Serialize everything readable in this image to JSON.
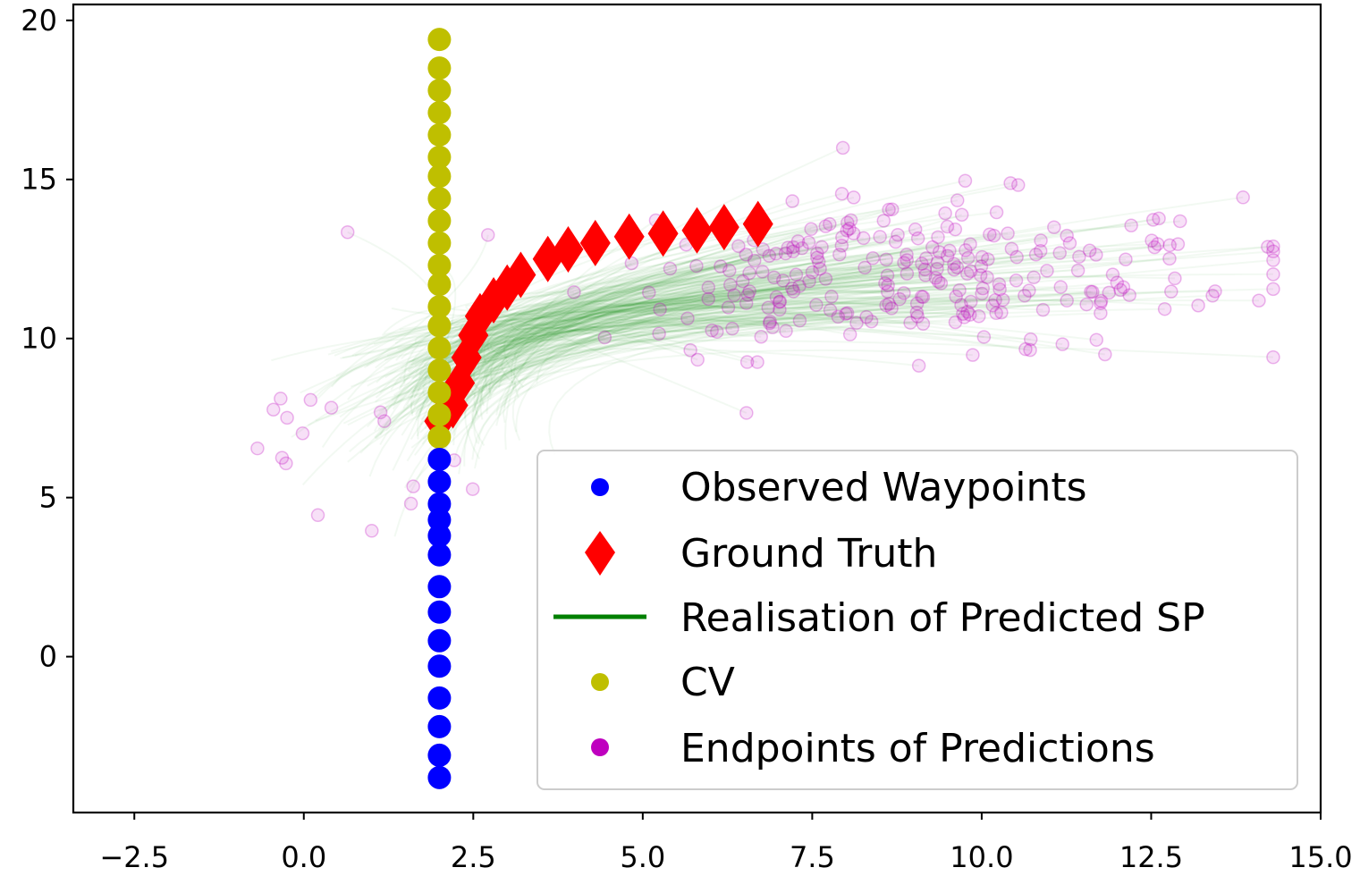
{
  "chart_data": {
    "type": "scatter",
    "title": "",
    "xlabel": "",
    "ylabel": "",
    "xlim": [
      -3.4,
      15.0
    ],
    "ylim": [
      -4.9,
      20.5
    ],
    "xticks": [
      -2.5,
      0.0,
      2.5,
      5.0,
      7.5,
      10.0,
      12.5,
      15.0
    ],
    "xtick_labels": [
      "−2.5",
      "0.0",
      "2.5",
      "5.0",
      "7.5",
      "10.0",
      "12.5",
      "15.0"
    ],
    "yticks": [
      0,
      5,
      10,
      15,
      20
    ],
    "ytick_labels": [
      "0",
      "5",
      "10",
      "15",
      "20"
    ],
    "grid": false,
    "legend_position": "lower-right",
    "colors": {
      "observed": "#0000ff",
      "ground_truth": "#ff0000",
      "predicted_sp": "#008000",
      "cv": "#bfbf00",
      "endpoints": "#bf00bf"
    },
    "series": [
      {
        "name": "Observed Waypoints",
        "kind": "points",
        "x": [
          2.0,
          2.0,
          2.0,
          2.0,
          2.0,
          2.0,
          2.0,
          2.0,
          2.0,
          2.0,
          2.0,
          2.0,
          2.0,
          2.0
        ],
        "y": [
          -3.8,
          -3.1,
          -2.2,
          -1.3,
          -0.3,
          0.5,
          1.4,
          2.2,
          3.2,
          3.8,
          4.3,
          4.8,
          5.5,
          6.2
        ]
      },
      {
        "name": "Ground Truth",
        "kind": "diamonds",
        "x": [
          2.0,
          2.2,
          2.3,
          2.4,
          2.5,
          2.6,
          2.8,
          3.0,
          3.2,
          3.6,
          3.9,
          4.3,
          4.8,
          5.3,
          5.8,
          6.2,
          6.7
        ],
        "y": [
          7.4,
          7.9,
          8.6,
          9.4,
          10.1,
          10.7,
          11.2,
          11.6,
          12.0,
          12.5,
          12.8,
          13.0,
          13.2,
          13.3,
          13.4,
          13.5,
          13.6
        ]
      },
      {
        "name": "Realisation of Predicted SP",
        "kind": "lines"
      },
      {
        "name": "CV",
        "kind": "points",
        "x": [
          2.0,
          2.0,
          2.0,
          2.0,
          2.0,
          2.0,
          2.0,
          2.0,
          2.0,
          2.0,
          2.0,
          2.0,
          2.0,
          2.0,
          2.0,
          2.0,
          2.0,
          2.0,
          2.0
        ],
        "y": [
          6.9,
          7.6,
          8.3,
          9.0,
          9.7,
          10.4,
          11.0,
          11.7,
          12.3,
          13.0,
          13.7,
          14.4,
          15.1,
          15.7,
          16.4,
          17.1,
          17.8,
          18.5,
          19.4
        ]
      },
      {
        "name": "Endpoints of Predictions",
        "kind": "points"
      }
    ],
    "legend": [
      {
        "label": "Observed Waypoints",
        "marker": "circle",
        "color": "#0000ff"
      },
      {
        "label": "Ground Truth",
        "marker": "diamond",
        "color": "#ff0000"
      },
      {
        "label": "Realisation of Predicted SP",
        "marker": "line",
        "color": "#008000"
      },
      {
        "label": "CV",
        "marker": "circle",
        "color": "#bfbf00"
      },
      {
        "label": "Endpoints of Predictions",
        "marker": "circle",
        "color": "#bf00bf"
      }
    ]
  }
}
